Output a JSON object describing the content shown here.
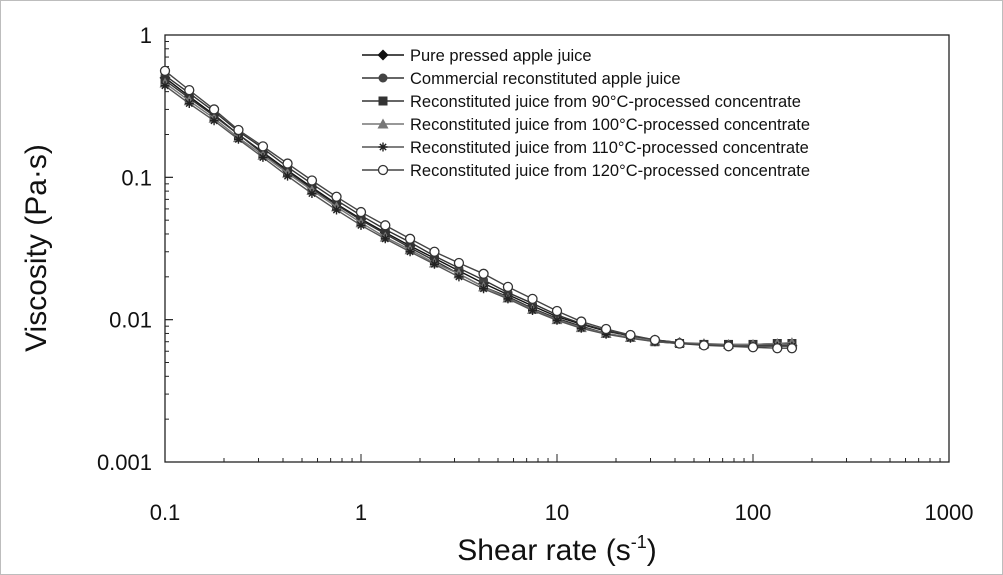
{
  "chart_data": {
    "type": "line",
    "xlabel": "Shear rate (s",
    "xlabel_sup": "-1",
    "xlabel_end": ")",
    "ylabel": "Viscosity (Pa·s)",
    "x_scale": "log",
    "y_scale": "log",
    "xlim": [
      0.1,
      1000
    ],
    "ylim": [
      0.001,
      1
    ],
    "x_ticks": [
      {
        "value": 0.1,
        "label": "0.1"
      },
      {
        "value": 1,
        "label": "1"
      },
      {
        "value": 10,
        "label": "10"
      },
      {
        "value": 100,
        "label": "100"
      },
      {
        "value": 1000,
        "label": "1000"
      }
    ],
    "y_ticks": [
      {
        "value": 0.001,
        "label": "0.001"
      },
      {
        "value": 0.01,
        "label": "0.01"
      },
      {
        "value": 0.1,
        "label": "0.1"
      },
      {
        "value": 1,
        "label": "1"
      }
    ],
    "grid": false,
    "legend_position": "top-right",
    "x": [
      0.1,
      0.133,
      0.178,
      0.237,
      0.316,
      0.422,
      0.562,
      0.75,
      1.0,
      1.33,
      1.78,
      2.37,
      3.16,
      4.22,
      5.62,
      7.5,
      10,
      13.3,
      17.8,
      23.7,
      31.6,
      42.2,
      56.2,
      75,
      100,
      133,
      158
    ],
    "series": [
      {
        "name": "Pure pressed apple juice",
        "marker": "diamond",
        "values": [
          0.5,
          0.37,
          0.275,
          0.2,
          0.15,
          0.112,
          0.085,
          0.065,
          0.051,
          0.041,
          0.033,
          0.027,
          0.022,
          0.018,
          0.015,
          0.0125,
          0.0105,
          0.0093,
          0.0083,
          0.0077,
          0.0072,
          0.0069,
          0.0067,
          0.0066,
          0.0066,
          0.0066,
          0.0066
        ]
      },
      {
        "name": "Commercial reconstituted apple juice",
        "marker": "circle-filled",
        "values": [
          0.52,
          0.39,
          0.29,
          0.21,
          0.16,
          0.118,
          0.09,
          0.069,
          0.054,
          0.043,
          0.035,
          0.028,
          0.023,
          0.019,
          0.0155,
          0.013,
          0.0108,
          0.0094,
          0.0084,
          0.0077,
          0.0072,
          0.0069,
          0.0067,
          0.0066,
          0.0066,
          0.0066,
          0.0066
        ]
      },
      {
        "name": "Reconstituted juice from 90°C-processed concentrate",
        "marker": "square",
        "values": [
          0.48,
          0.36,
          0.27,
          0.2,
          0.147,
          0.11,
          0.083,
          0.064,
          0.05,
          0.04,
          0.032,
          0.026,
          0.021,
          0.017,
          0.0145,
          0.012,
          0.0102,
          0.009,
          0.008,
          0.0075,
          0.007,
          0.0068,
          0.0067,
          0.0067,
          0.0067,
          0.0068,
          0.0068
        ]
      },
      {
        "name": "Reconstituted juice from 100°C-processed concentrate",
        "marker": "triangle",
        "values": [
          0.46,
          0.345,
          0.26,
          0.19,
          0.143,
          0.107,
          0.081,
          0.062,
          0.048,
          0.038,
          0.031,
          0.025,
          0.021,
          0.017,
          0.0142,
          0.0118,
          0.01,
          0.0088,
          0.008,
          0.0075,
          0.0071,
          0.0069,
          0.0068,
          0.0067,
          0.0067,
          0.0068,
          0.0069
        ]
      },
      {
        "name": "Reconstituted juice from 110°C-processed concentrate",
        "marker": "asterisk",
        "values": [
          0.44,
          0.33,
          0.25,
          0.185,
          0.138,
          0.102,
          0.077,
          0.059,
          0.046,
          0.037,
          0.03,
          0.0245,
          0.02,
          0.0165,
          0.014,
          0.0116,
          0.0099,
          0.0087,
          0.0079,
          0.0074,
          0.007,
          0.0068,
          0.0067,
          0.0066,
          0.0065,
          0.0065,
          0.0065
        ]
      },
      {
        "name": "Reconstituted juice from 120°C-processed concentrate",
        "marker": "circle-open",
        "values": [
          0.56,
          0.41,
          0.3,
          0.215,
          0.165,
          0.125,
          0.095,
          0.073,
          0.057,
          0.046,
          0.037,
          0.03,
          0.025,
          0.021,
          0.017,
          0.014,
          0.0115,
          0.0097,
          0.0086,
          0.0078,
          0.0072,
          0.0068,
          0.0066,
          0.0065,
          0.0064,
          0.0063,
          0.0063
        ]
      }
    ]
  }
}
